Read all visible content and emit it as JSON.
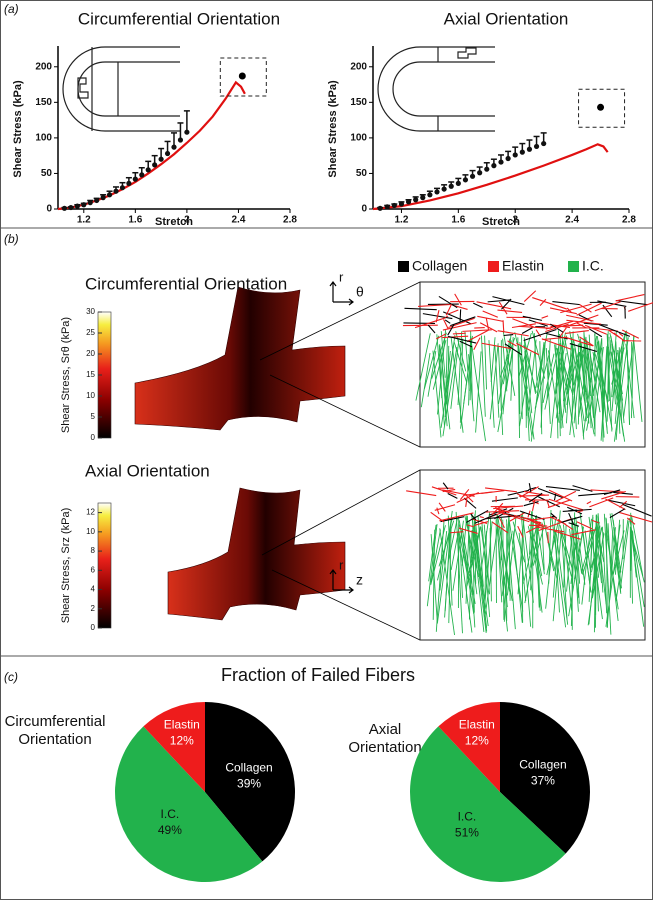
{
  "panel_labels": [
    "(a)",
    "(b)",
    "(c)"
  ],
  "chart_data": [
    {
      "type": "line",
      "title": "Circumferential Orientation",
      "xlabel": "Stretch",
      "ylabel": "Shear Stress (kPa)",
      "xlim": [
        1.0,
        2.8
      ],
      "xticks": [
        1.2,
        1.6,
        2.0,
        2.4,
        2.8
      ],
      "ylim": [
        0,
        225
      ],
      "yticks": [
        0,
        50,
        100,
        150,
        200
      ],
      "series": [
        {
          "mode": "line",
          "color": "#e01010",
          "x": [
            1.0,
            1.1,
            1.2,
            1.3,
            1.4,
            1.5,
            1.6,
            1.7,
            1.8,
            1.9,
            2.0,
            2.1,
            2.2,
            2.3,
            2.38,
            2.42,
            2.45
          ],
          "values": [
            0,
            2,
            6,
            12,
            19,
            28,
            38,
            50,
            63,
            77,
            93,
            110,
            130,
            155,
            178,
            172,
            162
          ]
        },
        {
          "mode": "markers",
          "color": "#111111",
          "x": [
            1.05,
            1.1,
            1.15,
            1.2,
            1.25,
            1.3,
            1.35,
            1.4,
            1.45,
            1.5,
            1.55,
            1.6,
            1.65,
            1.7,
            1.75,
            1.8,
            1.85,
            1.9,
            1.95,
            2.0
          ],
          "values": [
            1,
            2,
            4,
            6,
            9,
            12,
            16,
            20,
            25,
            30,
            36,
            42,
            48,
            55,
            62,
            70,
            78,
            87,
            97,
            108
          ],
          "errors": [
            1,
            1,
            2,
            2,
            3,
            3,
            4,
            5,
            6,
            7,
            8,
            9,
            10,
            12,
            13,
            15,
            17,
            20,
            24,
            30
          ]
        },
        {
          "mode": "failure",
          "color": "#000000",
          "x": [
            2.43
          ],
          "values": [
            187
          ]
        }
      ]
    },
    {
      "type": "line",
      "title": "Axial Orientation",
      "xlabel": "Stretch",
      "ylabel": "Shear Stress (kPa)",
      "xlim": [
        1.0,
        2.8
      ],
      "xticks": [
        1.2,
        1.6,
        2.0,
        2.4,
        2.8
      ],
      "ylim": [
        0,
        225
      ],
      "yticks": [
        0,
        50,
        100,
        150,
        200
      ],
      "series": [
        {
          "mode": "line",
          "color": "#e01010",
          "x": [
            1.0,
            1.2,
            1.4,
            1.6,
            1.8,
            2.0,
            2.2,
            2.4,
            2.5,
            2.58,
            2.62,
            2.65
          ],
          "values": [
            0,
            4,
            12,
            22,
            34,
            47,
            61,
            76,
            84,
            91,
            88,
            80
          ]
        },
        {
          "mode": "markers",
          "color": "#111111",
          "x": [
            1.05,
            1.1,
            1.15,
            1.2,
            1.25,
            1.3,
            1.35,
            1.4,
            1.45,
            1.5,
            1.55,
            1.6,
            1.65,
            1.7,
            1.75,
            1.8,
            1.85,
            1.9,
            1.95,
            2.0,
            2.05,
            2.1,
            2.15,
            2.2
          ],
          "values": [
            1,
            3,
            5,
            7,
            10,
            13,
            16,
            20,
            24,
            28,
            32,
            36,
            41,
            46,
            51,
            56,
            61,
            66,
            71,
            76,
            80,
            84,
            88,
            92
          ],
          "errors": [
            1,
            2,
            2,
            3,
            3,
            4,
            4,
            5,
            5,
            6,
            6,
            7,
            7,
            8,
            8,
            9,
            9,
            10,
            10,
            11,
            12,
            13,
            14,
            15
          ]
        },
        {
          "mode": "failure",
          "color": "#000000",
          "x": [
            2.6
          ],
          "values": [
            143
          ]
        }
      ]
    },
    {
      "type": "pie",
      "title": "Fraction of Failed Fibers",
      "title_lines": [
        "Circumferential",
        "Orientation"
      ],
      "categories": [
        "Collagen",
        "I.C.",
        "Elastin"
      ],
      "values": [
        39,
        49,
        12
      ],
      "value_labels": [
        "39%",
        "49%",
        "12%"
      ],
      "colors": [
        "#000000",
        "#22b24c",
        "#ee1c1c"
      ]
    },
    {
      "type": "pie",
      "title_lines": [
        "Axial",
        "Orientation"
      ],
      "categories": [
        "Collagen",
        "I.C.",
        "Elastin"
      ],
      "values": [
        37,
        51,
        12
      ],
      "value_labels": [
        "37%",
        "51%",
        "12%"
      ],
      "colors": [
        "#000000",
        "#22b24c",
        "#ee1c1c"
      ]
    }
  ],
  "panel_b": {
    "legend": [
      {
        "name": "Collagen",
        "color": "#000000"
      },
      {
        "name": "Elastin",
        "color": "#ee1c1c"
      },
      {
        "name": "I.C.",
        "color": "#22b24c"
      }
    ],
    "views": [
      {
        "title": "Circumferential Orientation",
        "axis_up": "r",
        "axis_right": "θ",
        "colorbar_label": "Shear Stress, Srθ (kPa)",
        "clim": [
          0,
          30
        ],
        "cticks": [
          0,
          5,
          10,
          15,
          20,
          25,
          30
        ]
      },
      {
        "title": "Axial Orientation",
        "axis_up": "r",
        "axis_right": "z",
        "colorbar_label": "Shear Stress, Srz (kPa)",
        "clim": [
          0,
          13
        ],
        "cticks": [
          0,
          2,
          4,
          6,
          8,
          10,
          12
        ]
      }
    ]
  }
}
